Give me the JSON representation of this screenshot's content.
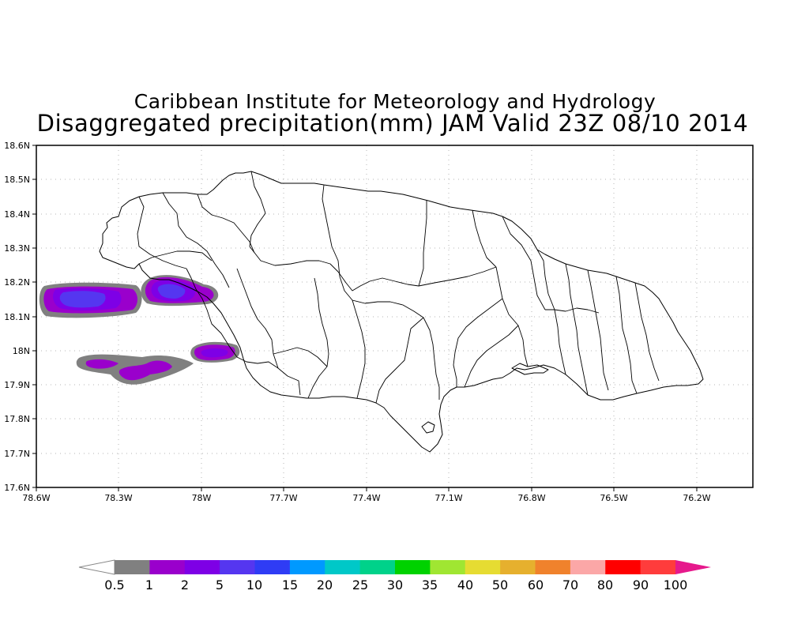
{
  "header": {
    "line1": "Caribbean Institute for Meteorology and Hydrology",
    "line2": "Disaggregated precipitation(mm) JAM Valid 23Z 08/10 2014"
  },
  "chart_data": {
    "type": "heatmap",
    "title": "Disaggregated precipitation(mm) JAM Valid 23Z 08/10 2014",
    "lon_range": [
      -78.6,
      -76.0
    ],
    "lat_range": [
      17.6,
      18.6
    ],
    "grid": true,
    "x_ticks": [
      "78.6W",
      "78.3W",
      "78W",
      "77.7W",
      "77.4W",
      "77.1W",
      "76.8W",
      "76.5W",
      "76.2W"
    ],
    "y_ticks": [
      "17.6N",
      "17.7N",
      "17.8N",
      "17.9N",
      "18N",
      "18.1N",
      "18.2N",
      "18.3N",
      "18.4N",
      "18.5N",
      "18.6N"
    ],
    "colorbar": {
      "labels": [
        "0.5",
        "1",
        "2",
        "5",
        "10",
        "15",
        "20",
        "25",
        "30",
        "35",
        "40",
        "50",
        "60",
        "70",
        "80",
        "90",
        "100"
      ],
      "colors": [
        "#808080",
        "#9a00cc",
        "#7e00e6",
        "#5536f0",
        "#2f3cf5",
        "#0099ff",
        "#00c8c8",
        "#00d28a",
        "#00d200",
        "#a0e632",
        "#e6dc32",
        "#e6b02e",
        "#f0822c",
        "#fba7a7",
        "#ff0000",
        "#ff3c3c"
      ],
      "over_color": "#e6198c",
      "under_color": "#ffffff"
    }
  }
}
